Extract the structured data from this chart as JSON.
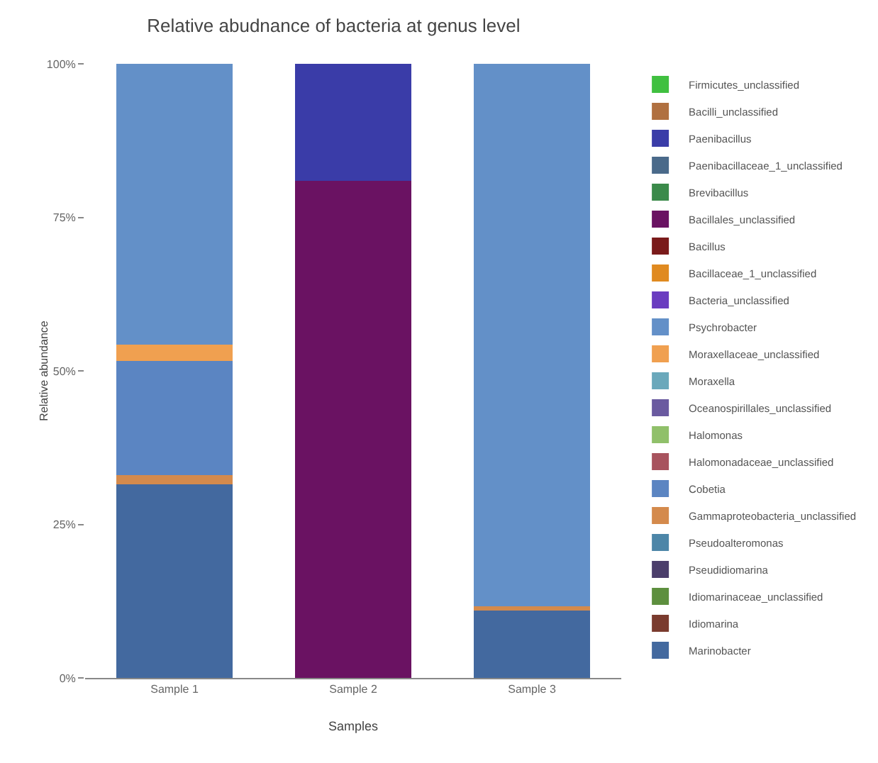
{
  "chart_data": {
    "type": "bar",
    "title": "Relative abudnance of bacteria at genus level",
    "xlabel": "Samples",
    "ylabel": "Relative abundance",
    "categories": [
      "Sample 1",
      "Sample 2",
      "Sample 3"
    ],
    "stacked": true,
    "ylim": [
      0,
      100
    ],
    "yticks": [
      {
        "value": 0,
        "label": "0%"
      },
      {
        "value": 25,
        "label": "25%"
      },
      {
        "value": 50,
        "label": "50%"
      },
      {
        "value": 75,
        "label": "75%"
      },
      {
        "value": 100,
        "label": "100%"
      }
    ],
    "grid": false,
    "legend": "right",
    "series": [
      {
        "name": "Marinobacter",
        "color": "#43699f",
        "values": [
          31.5,
          0,
          11
        ]
      },
      {
        "name": "Idiomarina",
        "color": "#7a3b2e",
        "values": [
          0,
          0,
          0
        ]
      },
      {
        "name": "Idiomarinaceae_unclassified",
        "color": "#5d8f3e",
        "values": [
          0,
          0,
          0
        ]
      },
      {
        "name": "Pseudidiomarina",
        "color": "#4b3e6b",
        "values": [
          0,
          0,
          0
        ]
      },
      {
        "name": "Pseudoalteromonas",
        "color": "#4d86a8",
        "values": [
          0,
          0,
          0
        ]
      },
      {
        "name": "Gammaproteobacteria_unclassified",
        "color": "#d48a4c",
        "values": [
          1.5,
          0,
          0.7
        ]
      },
      {
        "name": "Cobetia",
        "color": "#5b85c2",
        "values": [
          18.6,
          0,
          0
        ]
      },
      {
        "name": "Halomonadaceae_unclassified",
        "color": "#a8535e",
        "values": [
          0,
          0,
          0
        ]
      },
      {
        "name": "Halomonas",
        "color": "#90c06a",
        "values": [
          0,
          0,
          0
        ]
      },
      {
        "name": "Oceanospirillales_unclassified",
        "color": "#6a5aa0",
        "values": [
          0,
          0,
          0
        ]
      },
      {
        "name": "Moraxella",
        "color": "#6aa8bb",
        "values": [
          0,
          0,
          0
        ]
      },
      {
        "name": "Moraxellaceae_unclassified",
        "color": "#f0a050",
        "values": [
          2.7,
          0,
          0
        ]
      },
      {
        "name": "Psychrobacter",
        "color": "#6390c8",
        "values": [
          45.7,
          0,
          88.3
        ]
      },
      {
        "name": "Bacteria_unclassified",
        "color": "#6a3cc0",
        "values": [
          0,
          0,
          0
        ]
      },
      {
        "name": "Bacillaceae_1_unclassified",
        "color": "#e08a20",
        "values": [
          0,
          0,
          0
        ]
      },
      {
        "name": "Bacillus",
        "color": "#7a1a1a",
        "values": [
          0,
          0,
          0
        ]
      },
      {
        "name": "Bacillales_unclassified",
        "color": "#6a1262",
        "values": [
          0,
          81,
          0
        ]
      },
      {
        "name": "Brevibacillus",
        "color": "#3a8a4a",
        "values": [
          0,
          0,
          0
        ]
      },
      {
        "name": "Paenibacillaceae_1_unclassified",
        "color": "#4a6a8a",
        "values": [
          0,
          0,
          0
        ]
      },
      {
        "name": "Paenibacillus",
        "color": "#3a3ca8",
        "values": [
          0,
          19,
          0
        ]
      },
      {
        "name": "Bacilli_unclassified",
        "color": "#b07040",
        "values": [
          0,
          0,
          0
        ]
      },
      {
        "name": "Firmicutes_unclassified",
        "color": "#40c040",
        "values": [
          0,
          0,
          0
        ]
      }
    ]
  }
}
